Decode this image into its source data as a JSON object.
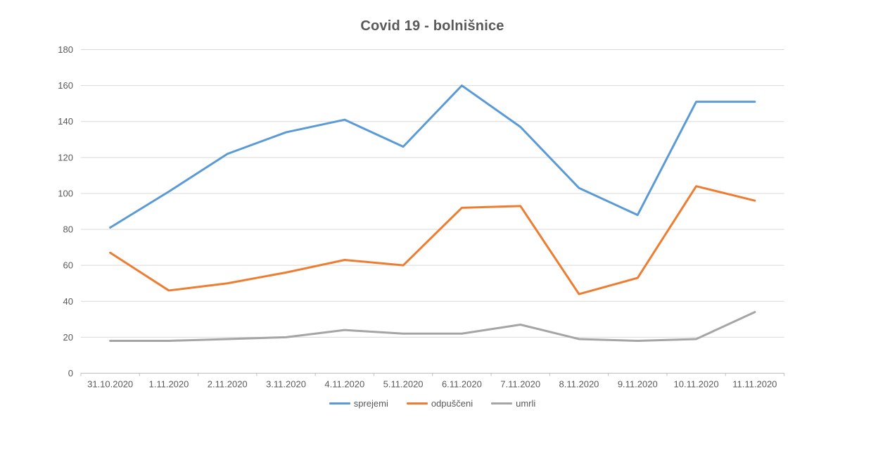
{
  "chart_data": {
    "type": "line",
    "title": "Covid 19 - bolnišnice",
    "categories": [
      "31.10.2020",
      "1.11.2020",
      "2.11.2020",
      "3.11.2020",
      "4.11.2020",
      "5.11.2020",
      "6.11.2020",
      "7.11.2020",
      "8.11.2020",
      "9.11.2020",
      "10.11.2020",
      "11.11.2020"
    ],
    "series": [
      {
        "name": "sprejemi",
        "color": "#5B9BD5",
        "values": [
          81,
          101,
          122,
          134,
          141,
          126,
          160,
          137,
          103,
          88,
          151,
          151
        ]
      },
      {
        "name": "odpuščeni",
        "color": "#ED7D31",
        "values": [
          67,
          46,
          50,
          56,
          63,
          60,
          92,
          93,
          44,
          53,
          104,
          96
        ]
      },
      {
        "name": "umrli",
        "color": "#A5A5A5",
        "values": [
          18,
          18,
          19,
          20,
          24,
          22,
          22,
          27,
          19,
          18,
          19,
          34
        ]
      }
    ],
    "ylim": [
      0,
      180
    ],
    "y_step": 20,
    "y_tick_labels": [
      "0",
      "20",
      "40",
      "60",
      "80",
      "100",
      "120",
      "140",
      "160",
      "180"
    ],
    "grid": true,
    "legend_position": "bottom",
    "colors": {
      "grid": "#D9D9D9",
      "axis": "#BFBFBF",
      "text": "#595959",
      "background": "#FFFFFF"
    }
  }
}
